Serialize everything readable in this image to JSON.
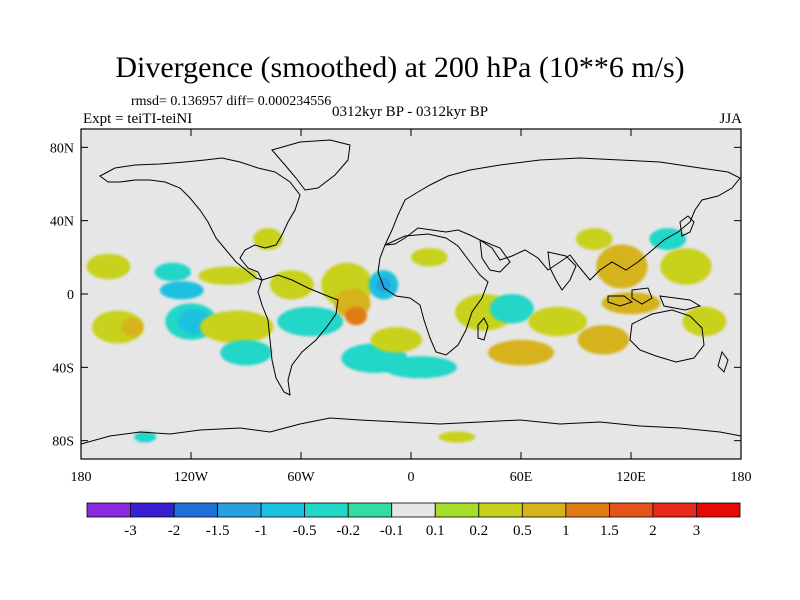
{
  "chart_data": {
    "type": "heatmap",
    "title": "Divergence (smoothed) at 200 hPa (10**6 m/s)",
    "stats_text": "rmsd= 0.136957  diff= 0.000234556",
    "left_label": "Expt = teiTI-teiNI",
    "center_label": "0312kyr BP - 0312kyr BP",
    "right_label": "JJA",
    "projection": "cylindrical equidistant",
    "lon_range": [
      -180,
      180
    ],
    "lat_range": [
      -90,
      90
    ],
    "x_ticks": [
      {
        "value": -180,
        "label": "180"
      },
      {
        "value": -120,
        "label": "120W"
      },
      {
        "value": -60,
        "label": "60W"
      },
      {
        "value": 0,
        "label": "0"
      },
      {
        "value": 60,
        "label": "60E"
      },
      {
        "value": 120,
        "label": "120E"
      },
      {
        "value": 180,
        "label": "180"
      }
    ],
    "y_ticks": [
      {
        "value": 80,
        "label": "80N"
      },
      {
        "value": 40,
        "label": "40N"
      },
      {
        "value": 0,
        "label": "0"
      },
      {
        "value": -40,
        "label": "40S"
      },
      {
        "value": -80,
        "label": "80S"
      }
    ],
    "colorbar": {
      "labels": [
        "-3",
        "-2",
        "-1.5",
        "-1",
        "-0.5",
        "-0.2",
        "-0.1",
        "0.1",
        "0.2",
        "0.5",
        "1",
        "1.5",
        "2",
        "3"
      ],
      "colors": [
        "#8a2be2",
        "#3a1fd0",
        "#1e6fd8",
        "#27a0e0",
        "#1fc1e0",
        "#22d6c8",
        "#33dda0",
        "#e6e6e6",
        "#a6dc2a",
        "#c8d21e",
        "#d6b31a",
        "#e07c14",
        "#e5531a",
        "#e82a1c",
        "#e80808"
      ]
    },
    "field_blobs": [
      {
        "lon": -165,
        "lat": 15,
        "rx": 12,
        "ry": 7,
        "level": "0.2"
      },
      {
        "lon": -160,
        "lat": -18,
        "rx": 14,
        "ry": 9,
        "level": "0.2"
      },
      {
        "lon": -152,
        "lat": -18,
        "rx": 6,
        "ry": 5,
        "level": "0.5"
      },
      {
        "lon": -130,
        "lat": 12,
        "rx": 10,
        "ry": 5,
        "level": "-0.2"
      },
      {
        "lon": -125,
        "lat": 2,
        "rx": 12,
        "ry": 5,
        "level": "-0.5"
      },
      {
        "lon": -120,
        "lat": -15,
        "rx": 14,
        "ry": 10,
        "level": "-0.2"
      },
      {
        "lon": -118,
        "lat": -15,
        "rx": 9,
        "ry": 7,
        "level": "-0.5"
      },
      {
        "lon": -100,
        "lat": 10,
        "rx": 16,
        "ry": 5,
        "level": "0.2"
      },
      {
        "lon": -95,
        "lat": -18,
        "rx": 20,
        "ry": 9,
        "level": "0.2"
      },
      {
        "lon": -90,
        "lat": -32,
        "rx": 14,
        "ry": 7,
        "level": "-0.2"
      },
      {
        "lon": -78,
        "lat": 30,
        "rx": 8,
        "ry": 6,
        "level": "0.2"
      },
      {
        "lon": -65,
        "lat": 5,
        "rx": 12,
        "ry": 8,
        "level": "0.2"
      },
      {
        "lon": -55,
        "lat": -15,
        "rx": 18,
        "ry": 8,
        "level": "-0.2"
      },
      {
        "lon": -35,
        "lat": 5,
        "rx": 14,
        "ry": 12,
        "level": "0.2"
      },
      {
        "lon": -32,
        "lat": -5,
        "rx": 10,
        "ry": 8,
        "level": "0.5"
      },
      {
        "lon": -30,
        "lat": -12,
        "rx": 6,
        "ry": 5,
        "level": "1"
      },
      {
        "lon": -20,
        "lat": -35,
        "rx": 18,
        "ry": 8,
        "level": "-0.2"
      },
      {
        "lon": -15,
        "lat": 5,
        "rx": 8,
        "ry": 8,
        "level": "-0.5"
      },
      {
        "lon": -15,
        "lat": 5,
        "rx": 4,
        "ry": 4,
        "level": "-1"
      },
      {
        "lon": -8,
        "lat": -25,
        "rx": 14,
        "ry": 7,
        "level": "0.2"
      },
      {
        "lon": 5,
        "lat": -40,
        "rx": 20,
        "ry": 6,
        "level": "-0.2"
      },
      {
        "lon": 10,
        "lat": 20,
        "rx": 10,
        "ry": 5,
        "level": "0.2"
      },
      {
        "lon": 40,
        "lat": -10,
        "rx": 16,
        "ry": 10,
        "level": "0.2"
      },
      {
        "lon": 55,
        "lat": -8,
        "rx": 12,
        "ry": 8,
        "level": "-0.2"
      },
      {
        "lon": 60,
        "lat": -32,
        "rx": 18,
        "ry": 7,
        "level": "0.5"
      },
      {
        "lon": 80,
        "lat": -15,
        "rx": 16,
        "ry": 8,
        "level": "0.2"
      },
      {
        "lon": 100,
        "lat": 30,
        "rx": 10,
        "ry": 6,
        "level": "0.2"
      },
      {
        "lon": 105,
        "lat": -25,
        "rx": 14,
        "ry": 8,
        "level": "0.5"
      },
      {
        "lon": 115,
        "lat": 15,
        "rx": 14,
        "ry": 12,
        "level": "0.5"
      },
      {
        "lon": 120,
        "lat": -5,
        "rx": 16,
        "ry": 6,
        "level": "0.5"
      },
      {
        "lon": 140,
        "lat": 30,
        "rx": 10,
        "ry": 6,
        "level": "-0.2"
      },
      {
        "lon": 150,
        "lat": 15,
        "rx": 14,
        "ry": 10,
        "level": "0.2"
      },
      {
        "lon": 160,
        "lat": -15,
        "rx": 12,
        "ry": 8,
        "level": "0.2"
      },
      {
        "lon": -145,
        "lat": -78,
        "rx": 6,
        "ry": 3,
        "level": "-0.2"
      },
      {
        "lon": 25,
        "lat": -78,
        "rx": 10,
        "ry": 3,
        "level": "0.2"
      }
    ]
  }
}
